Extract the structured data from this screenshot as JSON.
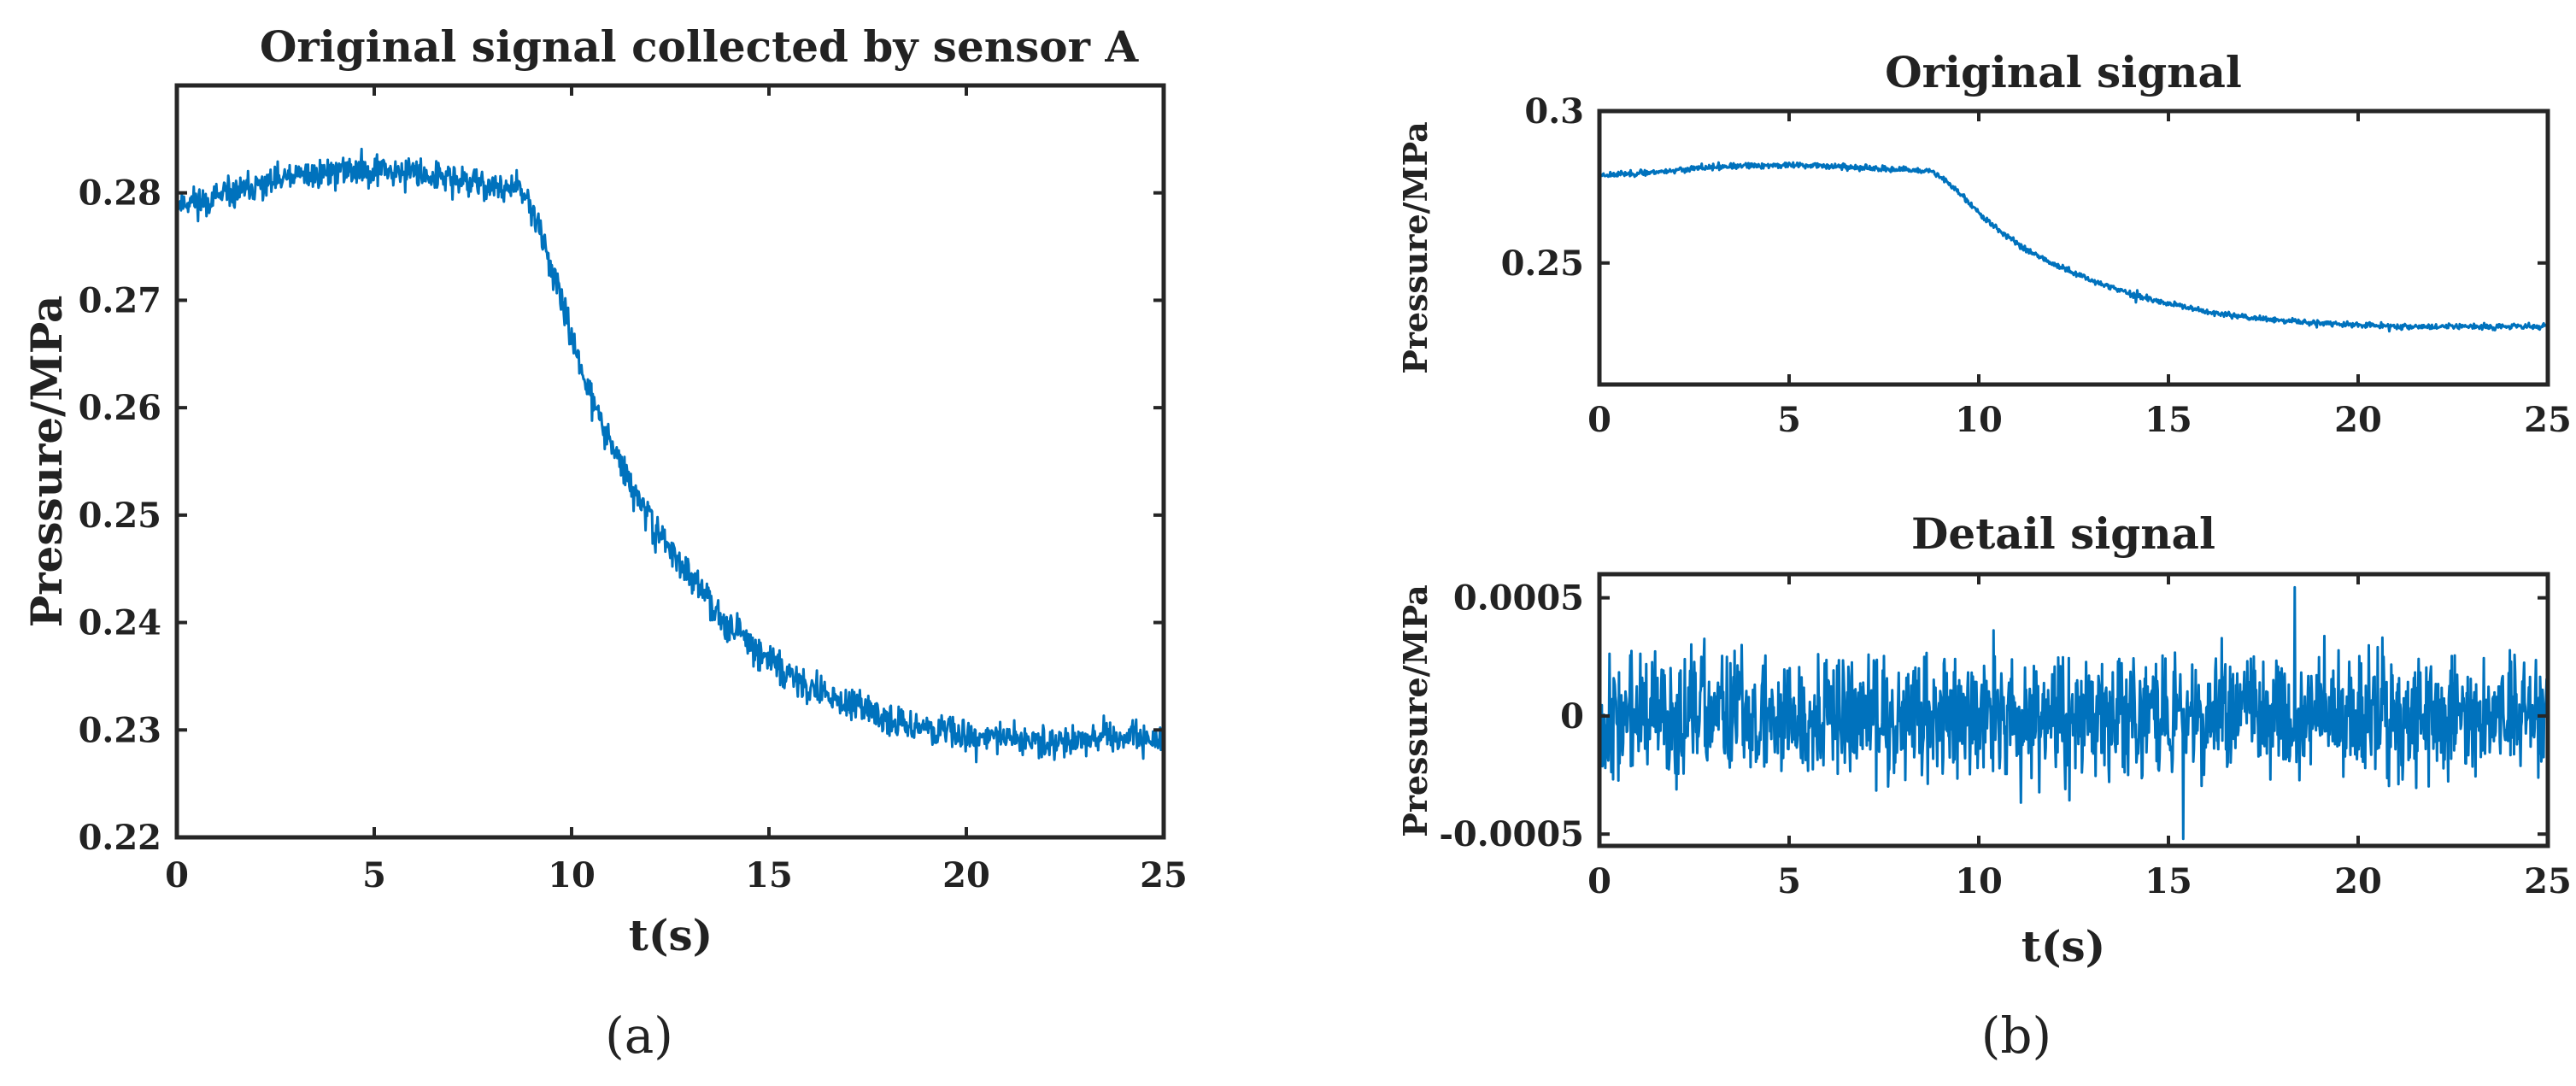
{
  "chart_data": [
    {
      "panel": "(a)",
      "type": "line",
      "title": "Original signal collected by sensor A",
      "xlabel": "t(s)",
      "ylabel": "Pressure/MPa",
      "xlim": [
        0,
        25
      ],
      "ylim": [
        0.22,
        0.29
      ],
      "xticks": [
        "0",
        "5",
        "10",
        "15",
        "20",
        "25"
      ],
      "yticks": [
        "0.22",
        "0.23",
        "0.24",
        "0.25",
        "0.26",
        "0.27",
        "0.28"
      ],
      "grid": false,
      "series": [
        {
          "name": "Original signal",
          "color": "#0072BD",
          "noise_amplitude": 0.0012,
          "x": [
            0,
            1,
            2,
            3,
            4,
            5,
            6,
            7,
            8,
            8.7,
            9,
            9.5,
            10,
            10.5,
            11,
            11.5,
            12,
            13,
            14,
            15,
            16,
            17,
            18,
            19,
            20,
            21,
            22,
            23,
            24,
            25
          ],
          "values": [
            0.279,
            0.2795,
            0.2805,
            0.2815,
            0.282,
            0.2822,
            0.282,
            0.2812,
            0.2806,
            0.2802,
            0.2785,
            0.273,
            0.2665,
            0.261,
            0.2565,
            0.2528,
            0.2495,
            0.2442,
            0.2398,
            0.2365,
            0.234,
            0.2323,
            0.231,
            0.2302,
            0.2296,
            0.2292,
            0.229,
            0.2291,
            0.2292,
            0.2291
          ]
        }
      ]
    },
    {
      "panel": "(b)",
      "type": "line",
      "title": "Original signal",
      "xlabel": "",
      "ylabel": "Pressure/MPa",
      "xlim": [
        0,
        25
      ],
      "ylim": [
        0.21,
        0.3
      ],
      "xticks": [
        "0",
        "5",
        "10",
        "15",
        "20",
        "25"
      ],
      "yticks": [
        "0.25",
        "0.3"
      ],
      "grid": false,
      "series": [
        {
          "name": "Original signal",
          "color": "#0072BD",
          "noise_amplitude": 0.0008,
          "x": [
            0,
            1,
            2,
            3,
            4,
            5,
            6,
            7,
            8,
            8.7,
            9,
            9.5,
            10,
            10.5,
            11,
            11.5,
            12,
            13,
            14,
            15,
            16,
            17,
            18,
            19,
            20,
            21,
            22,
            23,
            24,
            25
          ],
          "values": [
            0.279,
            0.2795,
            0.2805,
            0.2815,
            0.282,
            0.2822,
            0.282,
            0.2812,
            0.2806,
            0.2802,
            0.2785,
            0.273,
            0.2665,
            0.261,
            0.2565,
            0.2528,
            0.2495,
            0.2442,
            0.2398,
            0.2365,
            0.234,
            0.2323,
            0.231,
            0.2302,
            0.2296,
            0.2292,
            0.229,
            0.2291,
            0.2292,
            0.2291
          ]
        }
      ]
    },
    {
      "panel": "(b)",
      "type": "line",
      "title": "Detail signal",
      "xlabel": "t(s)",
      "ylabel": "Pressure/MPa",
      "xlim": [
        0,
        25
      ],
      "ylim": [
        -0.00055,
        0.0006
      ],
      "xticks": [
        "0",
        "5",
        "10",
        "15",
        "20",
        "25"
      ],
      "yticks": [
        "-0.0005",
        "0",
        "0.0005"
      ],
      "grid": false,
      "series": [
        {
          "name": "Detail signal",
          "color": "#0072BD",
          "noise_amplitude": 0.00022,
          "peak_max": 0.00057,
          "peak_min": -0.00052,
          "x": [
            0,
            25
          ],
          "values": [
            0,
            0
          ]
        }
      ]
    }
  ],
  "panel_labels": {
    "a": "(a)",
    "b": "(b)"
  },
  "colors": {
    "line": "#0072BD",
    "axes": "#262626"
  }
}
